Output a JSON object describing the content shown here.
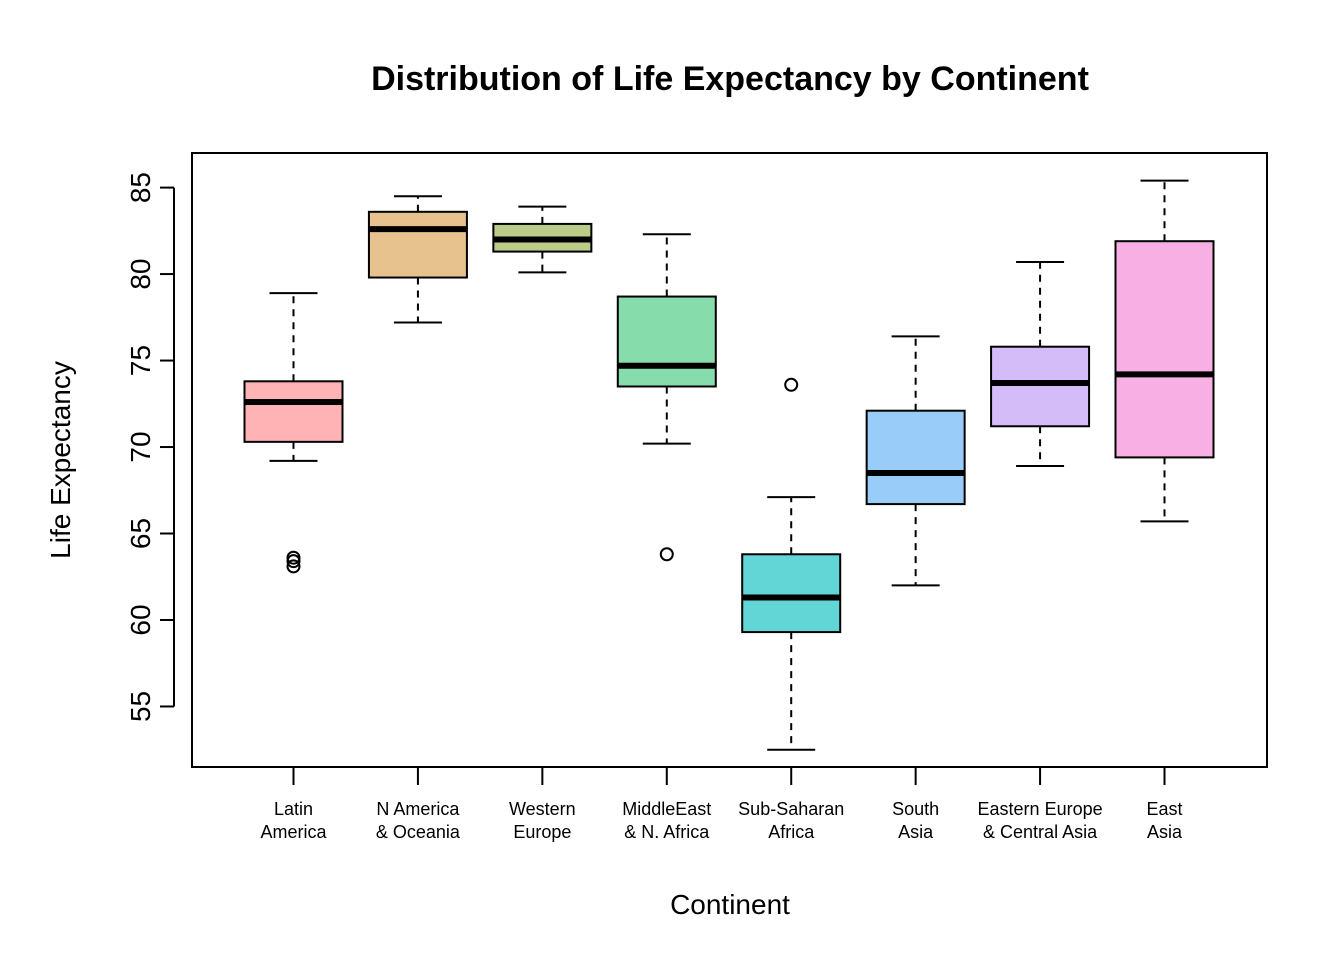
{
  "chart_data": {
    "type": "boxplot",
    "title": "Distribution of Life Expectancy by Continent",
    "xlabel": "Continent",
    "ylabel": "Life Expectancy",
    "ylim": [
      51.5,
      87
    ],
    "yticks": [
      "55",
      "60",
      "65",
      "70",
      "75",
      "80",
      "85"
    ],
    "grid": false,
    "legend": "none",
    "groups": [
      {
        "category": "Latin America",
        "label_lines": [
          "Latin",
          "America"
        ],
        "color": "#FFB3B5",
        "whisker_low": 69.2,
        "q1": 70.3,
        "median": 72.6,
        "q3": 73.8,
        "whisker_high": 78.9,
        "outliers": [
          63.1,
          63.4,
          63.6
        ]
      },
      {
        "category": "N America & Oceania",
        "label_lines": [
          "N America",
          "& Oceania"
        ],
        "color": "#E8C28E",
        "whisker_low": 77.2,
        "q1": 79.8,
        "median": 82.6,
        "q3": 83.6,
        "whisker_high": 84.5,
        "outliers": []
      },
      {
        "category": "Western Europe",
        "label_lines": [
          "Western",
          "Europe"
        ],
        "color": "#BBCC88",
        "whisker_low": 80.1,
        "q1": 81.3,
        "median": 82.0,
        "q3": 82.9,
        "whisker_high": 83.9,
        "outliers": []
      },
      {
        "category": "MiddleEast & N. Africa",
        "label_lines": [
          "MiddleEast",
          "& N. Africa"
        ],
        "color": "#86DCAA",
        "whisker_low": 70.2,
        "q1": 73.5,
        "median": 74.7,
        "q3": 78.7,
        "whisker_high": 82.3,
        "outliers": [
          63.8
        ]
      },
      {
        "category": "Sub-Saharan Africa",
        "label_lines": [
          "Sub-Saharan",
          "Africa"
        ],
        "color": "#62D6D6",
        "whisker_low": 52.5,
        "q1": 59.3,
        "median": 61.3,
        "q3": 63.8,
        "whisker_high": 67.1,
        "outliers": [
          73.6
        ]
      },
      {
        "category": "South Asia",
        "label_lines": [
          "South",
          "Asia"
        ],
        "color": "#99CCF9",
        "whisker_low": 62.0,
        "q1": 66.7,
        "median": 68.5,
        "q3": 72.1,
        "whisker_high": 76.4,
        "outliers": []
      },
      {
        "category": "Eastern Europe & Central Asia",
        "label_lines": [
          "Eastern Europe",
          "& Central Asia"
        ],
        "color": "#D4BCF9",
        "whisker_low": 68.9,
        "q1": 71.2,
        "median": 73.7,
        "q3": 75.8,
        "whisker_high": 80.7,
        "outliers": []
      },
      {
        "category": "East Asia",
        "label_lines": [
          "East",
          "Asia"
        ],
        "color": "#F8B0E4",
        "whisker_low": 65.7,
        "q1": 69.4,
        "median": 74.2,
        "q3": 81.9,
        "whisker_high": 85.4,
        "outliers": []
      }
    ]
  }
}
